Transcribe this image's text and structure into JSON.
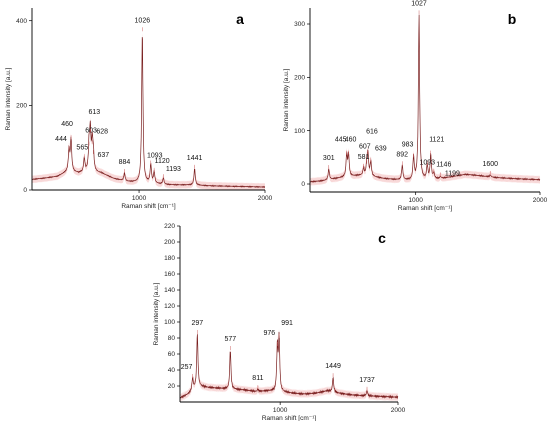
{
  "colors": {
    "spectrum": "#7a1f1f",
    "band": "#f2b8b8"
  },
  "chart_data": [
    {
      "type": "line",
      "panel": "a",
      "xlabel": "Raman shift [cm⁻¹]",
      "ylabel": "Raman intensity [a.u.]",
      "xlim": [
        150,
        2000
      ],
      "ylim": [
        0,
        430
      ],
      "xticks": [
        1000,
        2000
      ],
      "yticks": [
        0,
        200,
        400
      ],
      "grid": false,
      "baseline": [
        [
          150,
          25
        ],
        [
          250,
          28
        ],
        [
          350,
          32
        ],
        [
          440,
          45
        ],
        [
          520,
          40
        ],
        [
          600,
          44
        ],
        [
          700,
          40
        ],
        [
          800,
          27
        ],
        [
          900,
          20
        ],
        [
          980,
          18
        ],
        [
          1100,
          16
        ],
        [
          1200,
          13
        ],
        [
          1300,
          12
        ],
        [
          1440,
          12
        ],
        [
          1550,
          10
        ],
        [
          1700,
          9
        ],
        [
          1850,
          8
        ],
        [
          2000,
          7
        ]
      ],
      "peaks": [
        {
          "x": 444,
          "y": 95,
          "label": "444"
        },
        {
          "x": 460,
          "y": 120,
          "label": "460"
        },
        {
          "x": 565,
          "y": 75,
          "label": "565"
        },
        {
          "x": 603,
          "y": 105,
          "label": "603"
        },
        {
          "x": 613,
          "y": 135,
          "label": "613"
        },
        {
          "x": 628,
          "y": 108,
          "label": "628"
        },
        {
          "x": 637,
          "y": 85,
          "label": "637"
        },
        {
          "x": 884,
          "y": 40,
          "label": "884"
        },
        {
          "x": 1026,
          "y": 375,
          "label": "1026"
        },
        {
          "x": 1093,
          "y": 60,
          "label": "1093"
        },
        {
          "x": 1120,
          "y": 42,
          "label": "1120"
        },
        {
          "x": 1193,
          "y": 28,
          "label": "1193"
        },
        {
          "x": 1441,
          "y": 50,
          "label": "1441"
        }
      ]
    },
    {
      "type": "line",
      "panel": "b",
      "xlabel": "Raman shift [cm⁻¹]",
      "ylabel": "Raman intensity [a.u.]",
      "xlim": [
        150,
        2000
      ],
      "ylim": [
        -15,
        330
      ],
      "xticks": [
        1000,
        2000
      ],
      "yticks": [
        0,
        100,
        200,
        300
      ],
      "grid": false,
      "baseline": [
        [
          150,
          4
        ],
        [
          250,
          6
        ],
        [
          350,
          10
        ],
        [
          450,
          14
        ],
        [
          550,
          16
        ],
        [
          650,
          14
        ],
        [
          750,
          10
        ],
        [
          850,
          8
        ],
        [
          950,
          7
        ],
        [
          1100,
          8
        ],
        [
          1200,
          10
        ],
        [
          1300,
          14
        ],
        [
          1400,
          18
        ],
        [
          1500,
          16
        ],
        [
          1650,
          12
        ],
        [
          1800,
          10
        ],
        [
          2000,
          8
        ]
      ],
      "peaks": [
        {
          "x": 301,
          "y": 28,
          "label": "301"
        },
        {
          "x": 445,
          "y": 55,
          "label": "445"
        },
        {
          "x": 460,
          "y": 55,
          "label": "460"
        },
        {
          "x": 581,
          "y": 30,
          "label": "581"
        },
        {
          "x": 607,
          "y": 38,
          "label": "607"
        },
        {
          "x": 616,
          "y": 55,
          "label": "616"
        },
        {
          "x": 639,
          "y": 42,
          "label": "639"
        },
        {
          "x": 892,
          "y": 35,
          "label": "892"
        },
        {
          "x": 983,
          "y": 50,
          "label": "983"
        },
        {
          "x": 1027,
          "y": 318,
          "label": "1027"
        },
        {
          "x": 1093,
          "y": 35,
          "label": "1093"
        },
        {
          "x": 1121,
          "y": 55,
          "label": "1121"
        },
        {
          "x": 1146,
          "y": 20,
          "label": "1146"
        },
        {
          "x": 1199,
          "y": 14,
          "label": "1199"
        },
        {
          "x": 1600,
          "y": 17,
          "label": "1600"
        }
      ]
    },
    {
      "type": "line",
      "panel": "c",
      "xlabel": "Raman shift [cm⁻¹]",
      "ylabel": "Raman intensity [a.u.]",
      "xlim": [
        150,
        2000
      ],
      "ylim": [
        0,
        220
      ],
      "xticks": [
        1000,
        2000
      ],
      "yticks": [
        20,
        40,
        60,
        80,
        100,
        120,
        140,
        160,
        180,
        200,
        220
      ],
      "grid": false,
      "baseline": [
        [
          150,
          5
        ],
        [
          220,
          10
        ],
        [
          300,
          20
        ],
        [
          400,
          18
        ],
        [
          500,
          17
        ],
        [
          600,
          16
        ],
        [
          700,
          15
        ],
        [
          800,
          13
        ],
        [
          900,
          14
        ],
        [
          1000,
          13
        ],
        [
          1100,
          11
        ],
        [
          1200,
          10
        ],
        [
          1300,
          11
        ],
        [
          1400,
          14
        ],
        [
          1500,
          11
        ],
        [
          1600,
          9
        ],
        [
          1700,
          8
        ],
        [
          1850,
          7
        ],
        [
          2000,
          6
        ]
      ],
      "peaks": [
        {
          "x": 257,
          "y": 30,
          "label": "257"
        },
        {
          "x": 297,
          "y": 85,
          "label": "297"
        },
        {
          "x": 577,
          "y": 65,
          "label": "577"
        },
        {
          "x": 811,
          "y": 16,
          "label": "811"
        },
        {
          "x": 976,
          "y": 70,
          "label": "976"
        },
        {
          "x": 991,
          "y": 80,
          "label": "991"
        },
        {
          "x": 1449,
          "y": 31,
          "label": "1449"
        },
        {
          "x": 1737,
          "y": 14,
          "label": "1737"
        }
      ]
    }
  ],
  "panel_letters": [
    "a",
    "b",
    "c"
  ]
}
